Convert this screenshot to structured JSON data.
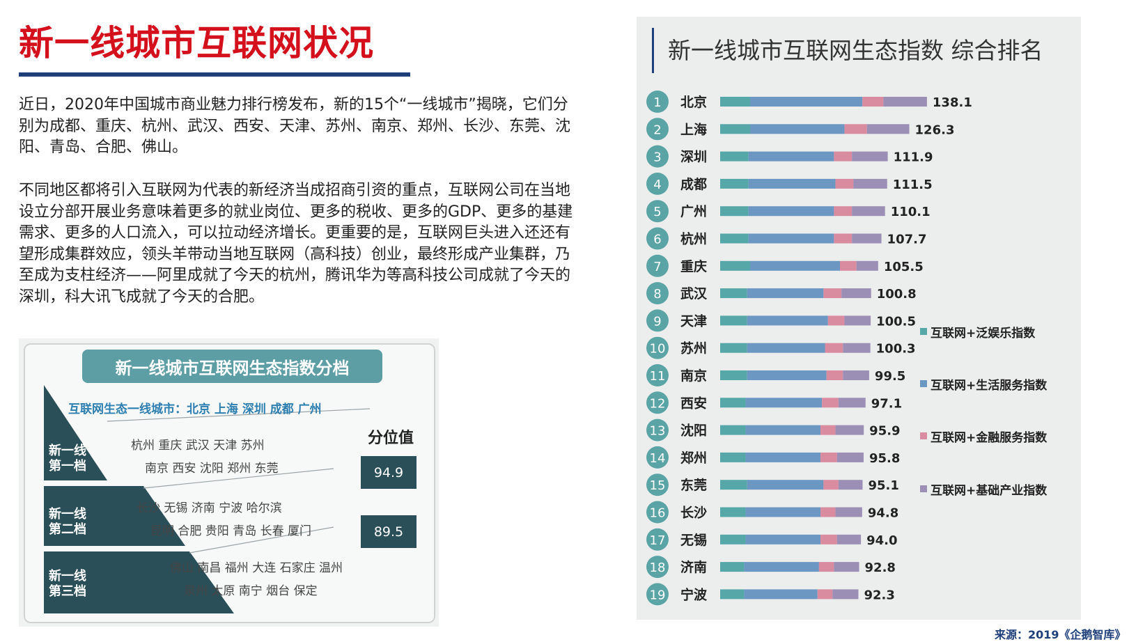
{
  "header": {
    "title": "新一线城市互联网状况"
  },
  "paragraphs": [
    "近日，2020年中国城市商业魅力排行榜发布，新的15个“一线城市”揭晓，它们分别为成都、重庆、杭州、武汉、西安、天津、苏州、南京、郑州、长沙、东莞、沈阳、青岛、合肥、佛山。",
    "不同地区都将引入互联网为代表的新经济当成招商引资的重点，互联网公司在当地设立分部开展业务意味着更多的就业岗位、更多的税收、更多的GDP、更多的基建需求、更多的人口流入，可以拉动经济增长。更重要的是，互联网巨头进入还还有望形成集群效应，领头羊带动当地互联网（高科技）创业，最终形成产业集群，乃至成为支柱经济——阿里成就了今天的杭州，腾讯华为等高科技公司成就了今天的深圳，科大讯飞成就了今天的合肥。"
  ],
  "tiers": {
    "title": "新一线城市互联网生态指数分档",
    "top_line": "互联网生态一线城市：北京 上海 深圳 成都 广州",
    "quantile_title": "分位值",
    "levels": [
      {
        "label_1": "新一线",
        "label_2": "第一档",
        "cities_1": "杭州 重庆 武汉 天津 苏州",
        "cities_2": "南京 西安 沈阳 郑州 东莞",
        "quantile": "94.9"
      },
      {
        "label_1": "新一线",
        "label_2": "第二档",
        "cities_1": "长沙 无锡 济南 宁波 哈尔滨",
        "cities_2": "昆明 合肥 贵阳 青岛 长春 厦门",
        "quantile": "89.5"
      },
      {
        "label_1": "新一线",
        "label_2": "第三档",
        "cities_1": "佛山 南昌 福州 大连 石家庄 温州",
        "cities_2": "泉州 太原 南宁 烟台 保定"
      }
    ],
    "colors": {
      "triangle": "#2a4f58",
      "header": "#5d9ea4"
    }
  },
  "chart_data": {
    "type": "bar",
    "orientation": "horizontal",
    "stacked": true,
    "title": "新一线城市互联网生态指数 综合排名",
    "ranks": [
      "1",
      "2",
      "3",
      "4",
      "5",
      "6",
      "7",
      "8",
      "9",
      "10",
      "11",
      "12",
      "13",
      "14",
      "15",
      "16",
      "17",
      "18",
      "19"
    ],
    "categories": [
      "北京",
      "上海",
      "深圳",
      "成都",
      "广州",
      "杭州",
      "重庆",
      "武汉",
      "天津",
      "苏州",
      "南京",
      "西安",
      "沈阳",
      "郑州",
      "东莞",
      "长沙",
      "无锡",
      "济南",
      "宁波"
    ],
    "totals": [
      138.1,
      126.3,
      111.9,
      111.5,
      110.1,
      107.7,
      105.5,
      100.8,
      100.5,
      100.3,
      99.5,
      97.1,
      95.9,
      95.8,
      95.1,
      94.8,
      94.0,
      92.8,
      92.3
    ],
    "total_labels": [
      "138.1",
      "126.3",
      "111.9",
      "111.5",
      "110.1",
      "107.7",
      "105.5",
      "100.8",
      "100.5",
      "100.3",
      "99.5",
      "97.1",
      "95.9",
      "95.8",
      "95.1",
      "94.8",
      "94.0",
      "92.8",
      "92.3"
    ],
    "series": [
      {
        "name": "互联网+泛娱乐指数",
        "color": "#56a8a8",
        "values": [
          20,
          20,
          19,
          19,
          19,
          19,
          20,
          18,
          18,
          18,
          18,
          17,
          17,
          17,
          18,
          17,
          17,
          16,
          16
        ]
      },
      {
        "name": "互联网+生活服务指数",
        "color": "#6c97c3",
        "values": [
          75,
          63,
          57,
          58,
          57,
          57,
          60,
          51,
          54,
          52,
          53,
          51,
          50,
          50,
          51,
          50,
          50,
          50,
          49
        ]
      },
      {
        "name": "互联网+金融服务指数",
        "color": "#d98ba0",
        "values": [
          14,
          15,
          12,
          12,
          12,
          12,
          11,
          12,
          11,
          12,
          11,
          11,
          10,
          11,
          10,
          10,
          11,
          10,
          10
        ]
      },
      {
        "name": "互联网+基础产业指数",
        "color": "#9b8fb5",
        "values": [
          29.1,
          28.3,
          23.9,
          22.5,
          22.1,
          19.7,
          14.5,
          19.8,
          17.5,
          18.3,
          17.5,
          18.1,
          18.9,
          17.8,
          16.1,
          17.8,
          16.0,
          16.8,
          17.3
        ]
      }
    ],
    "legend_position": "right",
    "rank_circle_color": "#5aa4a6",
    "source": "来源：2019《企鹅智库》"
  }
}
